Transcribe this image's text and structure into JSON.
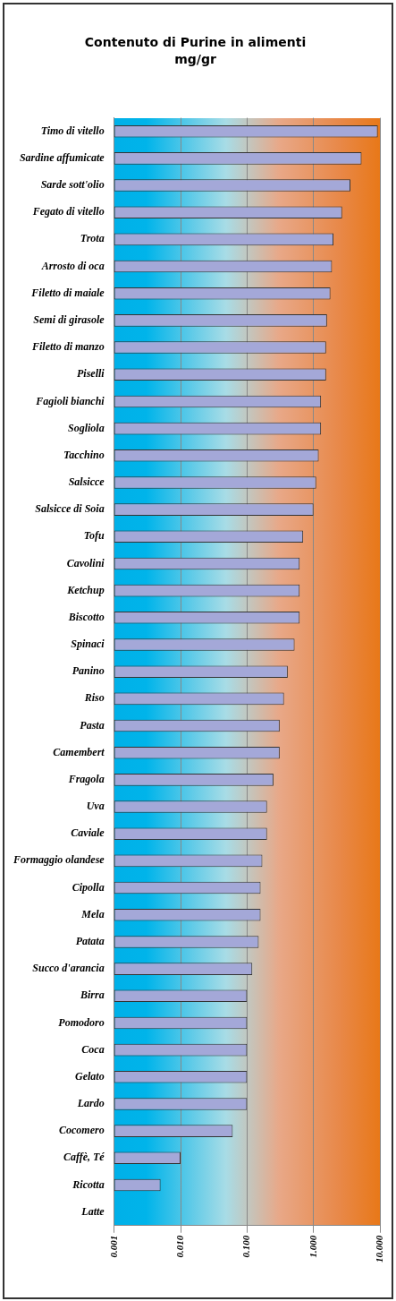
{
  "chart_data": {
    "type": "bar",
    "orientation": "horizontal",
    "title": "Contenuto di Purine in alimenti",
    "subtitle": "mg/gr",
    "categories": [
      "Timo di vitello",
      "Sardine affumicate",
      "Sarde sott'olio",
      "Fegato di vitello",
      "Trota",
      "Arrosto di oca",
      "Filetto di maiale",
      "Semi di girasole",
      "Filetto di manzo",
      "Piselli",
      "Fagioli bianchi",
      "Sogliola",
      "Tacchino",
      "Salsicce",
      "Salsicce di Soia",
      "Tofu",
      "Cavolini",
      "Ketchup",
      "Biscotto",
      "Spinaci",
      "Panino",
      "Riso",
      "Pasta",
      "Camembert",
      "Fragola",
      "Uva",
      "Caviale",
      "Formaggio olandese",
      "Cipolla",
      "Mela",
      "Patata",
      "Succo d'arancia",
      "Birra",
      "Pomodoro",
      "Coca",
      "Gelato",
      "Lardo",
      "Cocomero",
      "Caffè, Té",
      "Ricotta",
      "Latte"
    ],
    "values": [
      9.3,
      5.3,
      3.6,
      2.7,
      2.0,
      1.9,
      1.8,
      1.6,
      1.55,
      1.55,
      1.3,
      1.3,
      1.2,
      1.1,
      1.0,
      0.7,
      0.62,
      0.62,
      0.62,
      0.52,
      0.41,
      0.36,
      0.31,
      0.31,
      0.25,
      0.2,
      0.2,
      0.17,
      0.16,
      0.16,
      0.15,
      0.12,
      0.1,
      0.1,
      0.1,
      0.1,
      0.1,
      0.061,
      0.01,
      0.005,
      null
    ],
    "color": "#a4a8d8",
    "log": "x",
    "xlim": [
      0.001,
      10
    ],
    "xticks": [
      {
        "value": 0.001,
        "label": "0.001"
      },
      {
        "value": 0.01,
        "label": "0.010"
      },
      {
        "value": 0.1,
        "label": "0.100"
      },
      {
        "value": 1,
        "label": "1.000"
      },
      {
        "value": 10,
        "label": "10.000"
      }
    ],
    "grid": "x",
    "legend": false
  }
}
